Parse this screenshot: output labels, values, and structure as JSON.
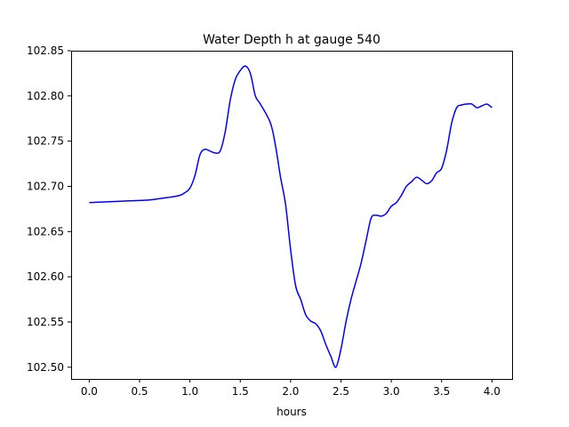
{
  "chart_data": {
    "type": "line",
    "title": "Water Depth h at gauge 540",
    "xlabel": "hours",
    "ylabel": "",
    "xlim": [
      -0.18,
      4.2
    ],
    "ylim": [
      102.487,
      102.85
    ],
    "x_ticks": [
      0.0,
      0.5,
      1.0,
      1.5,
      2.0,
      2.5,
      3.0,
      3.5,
      4.0
    ],
    "x_tick_labels": [
      "0.0",
      "0.5",
      "1.0",
      "1.5",
      "2.0",
      "2.5",
      "3.0",
      "3.5",
      "4.0"
    ],
    "y_ticks": [
      102.5,
      102.55,
      102.6,
      102.65,
      102.7,
      102.75,
      102.8,
      102.85
    ],
    "y_tick_labels": [
      "102.50",
      "102.55",
      "102.60",
      "102.65",
      "102.70",
      "102.75",
      "102.80",
      "102.85"
    ],
    "grid": false,
    "series": [
      {
        "color": "#0000ff",
        "x": [
          0.0,
          0.2,
          0.4,
          0.6,
          0.8,
          0.9,
          0.95,
          1.0,
          1.05,
          1.1,
          1.15,
          1.2,
          1.25,
          1.3,
          1.35,
          1.4,
          1.45,
          1.5,
          1.55,
          1.6,
          1.65,
          1.7,
          1.8,
          1.85,
          1.9,
          1.95,
          2.0,
          2.05,
          2.1,
          2.15,
          2.2,
          2.25,
          2.3,
          2.35,
          2.4,
          2.45,
          2.5,
          2.55,
          2.6,
          2.65,
          2.7,
          2.75,
          2.8,
          2.85,
          2.9,
          2.95,
          3.0,
          3.05,
          3.1,
          3.15,
          3.2,
          3.25,
          3.3,
          3.35,
          3.4,
          3.45,
          3.5,
          3.55,
          3.6,
          3.65,
          3.7,
          3.75,
          3.8,
          3.85,
          3.9,
          3.95,
          4.0
        ],
        "y": [
          102.682,
          102.683,
          102.684,
          102.685,
          102.688,
          102.69,
          102.693,
          102.698,
          102.712,
          102.735,
          102.741,
          102.739,
          102.737,
          102.739,
          102.76,
          102.795,
          102.818,
          102.828,
          102.833,
          102.825,
          102.8,
          102.791,
          102.77,
          102.745,
          102.71,
          102.68,
          102.63,
          102.59,
          102.575,
          102.558,
          102.551,
          102.548,
          102.54,
          102.525,
          102.512,
          102.5,
          102.52,
          102.55,
          102.575,
          102.595,
          102.615,
          102.64,
          102.665,
          102.668,
          102.667,
          102.67,
          102.678,
          102.682,
          102.69,
          102.7,
          102.705,
          102.71,
          102.707,
          102.703,
          102.706,
          102.715,
          102.72,
          102.74,
          102.77,
          102.787,
          102.79,
          102.791,
          102.791,
          102.787,
          102.789,
          102.791,
          102.787
        ]
      }
    ]
  }
}
